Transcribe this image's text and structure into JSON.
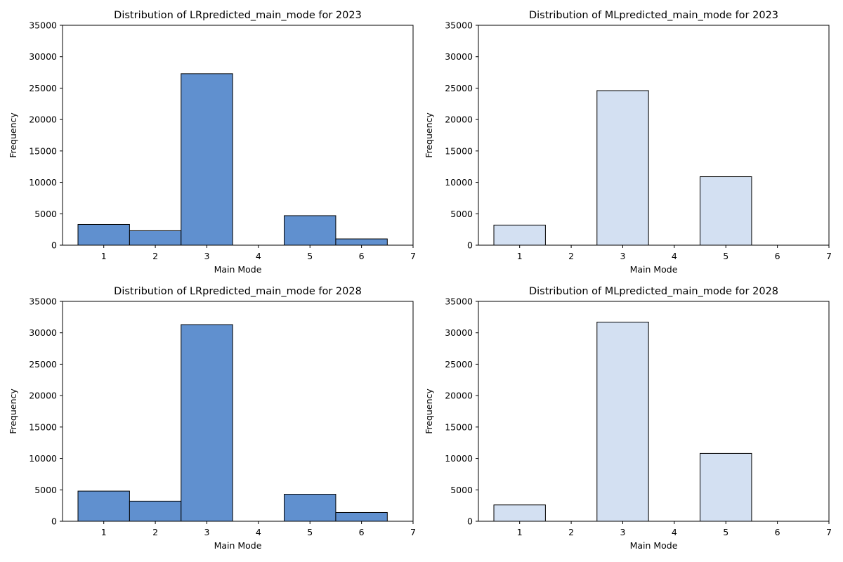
{
  "chart_data": [
    {
      "type": "bar",
      "title": "Distribution of LRpredicted_main_mode for 2023",
      "xlabel": "Main Mode",
      "ylabel": "Frequency",
      "xlim": [
        0.2,
        7
      ],
      "ylim": [
        0,
        35000
      ],
      "xticks": [
        1,
        2,
        3,
        4,
        5,
        6,
        7
      ],
      "yticks": [
        0,
        5000,
        10000,
        15000,
        20000,
        25000,
        30000,
        35000
      ],
      "color": "#6090cf",
      "bars": [
        {
          "x0": 0.5,
          "x1": 1.5,
          "value": 3300
        },
        {
          "x0": 1.5,
          "x1": 2.5,
          "value": 2300
        },
        {
          "x0": 2.5,
          "x1": 3.5,
          "value": 27300
        },
        {
          "x0": 4.5,
          "x1": 5.5,
          "value": 4700
        },
        {
          "x0": 5.5,
          "x1": 6.5,
          "value": 1000
        }
      ]
    },
    {
      "type": "bar",
      "title": "Distribution of MLpredicted_main_mode for 2023",
      "xlabel": "Main Mode",
      "ylabel": "Frequency",
      "xlim": [
        0.2,
        7
      ],
      "ylim": [
        0,
        35000
      ],
      "xticks": [
        1,
        2,
        3,
        4,
        5,
        6,
        7
      ],
      "yticks": [
        0,
        5000,
        10000,
        15000,
        20000,
        25000,
        30000,
        35000
      ],
      "color": "#d3e0f2",
      "bars": [
        {
          "x0": 0.5,
          "x1": 1.5,
          "value": 3200
        },
        {
          "x0": 2.5,
          "x1": 3.5,
          "value": 24600
        },
        {
          "x0": 4.5,
          "x1": 5.5,
          "value": 10900
        }
      ]
    },
    {
      "type": "bar",
      "title": "Distribution of LRpredicted_main_mode for 2028",
      "xlabel": "Main Mode",
      "ylabel": "Frequency",
      "xlim": [
        0.2,
        7
      ],
      "ylim": [
        0,
        35000
      ],
      "xticks": [
        1,
        2,
        3,
        4,
        5,
        6,
        7
      ],
      "yticks": [
        0,
        5000,
        10000,
        15000,
        20000,
        25000,
        30000,
        35000
      ],
      "color": "#6090cf",
      "bars": [
        {
          "x0": 0.5,
          "x1": 1.5,
          "value": 4800
        },
        {
          "x0": 1.5,
          "x1": 2.5,
          "value": 3200
        },
        {
          "x0": 2.5,
          "x1": 3.5,
          "value": 31300
        },
        {
          "x0": 4.5,
          "x1": 5.5,
          "value": 4300
        },
        {
          "x0": 5.5,
          "x1": 6.5,
          "value": 1400
        }
      ]
    },
    {
      "type": "bar",
      "title": "Distribution of MLpredicted_main_mode for 2028",
      "xlabel": "Main Mode",
      "ylabel": "Frequency",
      "xlim": [
        0.2,
        7
      ],
      "ylim": [
        0,
        35000
      ],
      "xticks": [
        1,
        2,
        3,
        4,
        5,
        6,
        7
      ],
      "yticks": [
        0,
        5000,
        10000,
        15000,
        20000,
        25000,
        30000,
        35000
      ],
      "color": "#d3e0f2",
      "bars": [
        {
          "x0": 0.5,
          "x1": 1.5,
          "value": 2600
        },
        {
          "x0": 2.5,
          "x1": 3.5,
          "value": 31700
        },
        {
          "x0": 4.5,
          "x1": 5.5,
          "value": 10800
        }
      ]
    }
  ]
}
